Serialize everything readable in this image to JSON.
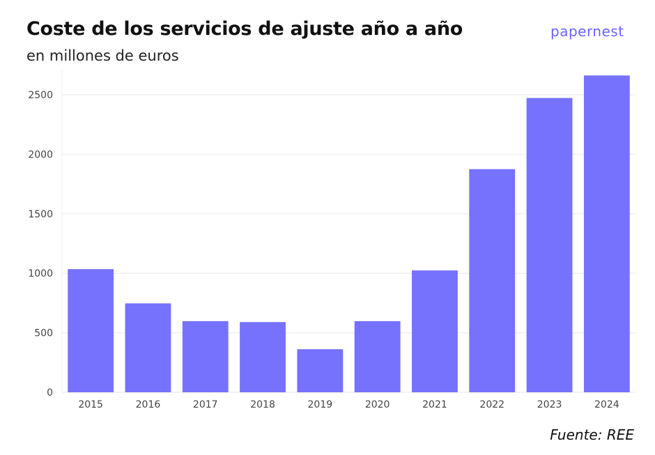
{
  "logo_text": "papernest",
  "source": "Fuente: REE",
  "chart_data": {
    "type": "bar",
    "title": "Coste de los servicios de ajuste año a año",
    "subtitle": "en millones de euros",
    "xlabel": "",
    "ylabel": "",
    "categories": [
      "2015",
      "2016",
      "2017",
      "2018",
      "2019",
      "2020",
      "2021",
      "2022",
      "2023",
      "2024"
    ],
    "values": [
      1035,
      747,
      598,
      590,
      362,
      598,
      1024,
      1875,
      2473,
      2662
    ],
    "ylim": [
      0,
      2700
    ],
    "yticks": [
      0,
      500,
      1000,
      1500,
      2000,
      2500
    ],
    "grid": true,
    "bar_color": "#7672fd"
  }
}
